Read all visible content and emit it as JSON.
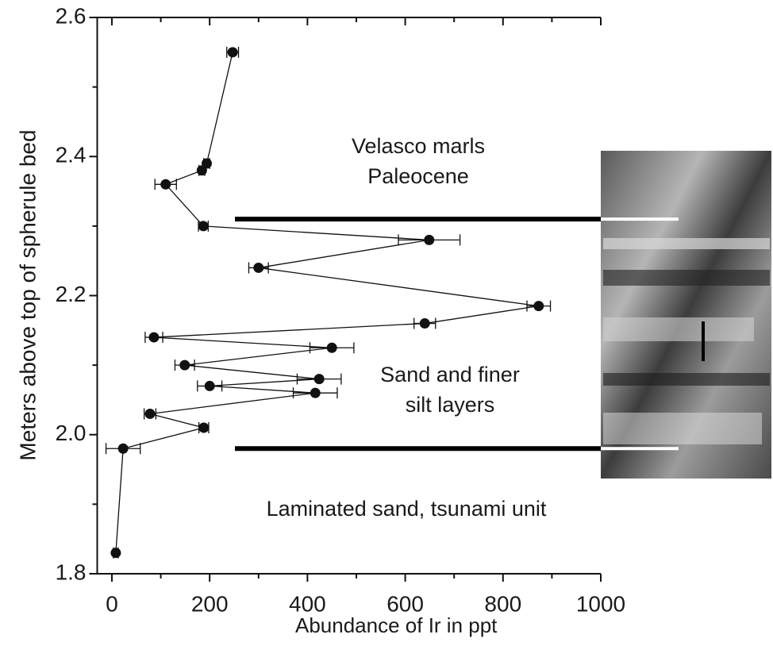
{
  "chart_data": {
    "type": "scatter",
    "xlabel": "Abundance of Ir in ppt",
    "ylabel": "Meters above top of spherule bed",
    "xlim": [
      -30,
      1000
    ],
    "ylim": [
      1.8,
      2.6
    ],
    "xticks": [
      0,
      200,
      400,
      600,
      800,
      1000
    ],
    "xminorticks": [
      100,
      300,
      500,
      700,
      900
    ],
    "yticks": [
      1.8,
      {
        "value": 2,
        "label": "2.0"
      },
      2.2,
      2.4,
      2.6
    ],
    "yminorticks": [
      1.9,
      2.1,
      2.3,
      2.5
    ],
    "boundaries": [
      2.31,
      1.98
    ],
    "annotations": [
      [
        "Velasco marls",
        "Paleocene"
      ],
      [
        "Sand and finer",
        "silt layers"
      ],
      [
        "Laminated sand, tsunami unit"
      ]
    ],
    "series": [
      {
        "color": "#111111",
        "x": [
          247,
          194,
          184,
          110,
          187,
          649,
          300,
          873,
          640,
          86,
          450,
          149,
          424,
          200,
          416,
          78,
          188,
          23,
          8
        ],
        "y": [
          2.55,
          2.39,
          2.38,
          2.36,
          2.3,
          2.28,
          2.24,
          2.185,
          2.16,
          2.14,
          2.125,
          2.1,
          2.08,
          2.07,
          2.06,
          2.03,
          2.01,
          1.98,
          1.83
        ],
        "xerr": [
          12,
          6,
          6,
          22,
          10,
          63,
          20,
          24,
          22,
          18,
          45,
          20,
          45,
          25,
          45,
          12,
          10,
          35,
          5
        ]
      }
    ]
  }
}
